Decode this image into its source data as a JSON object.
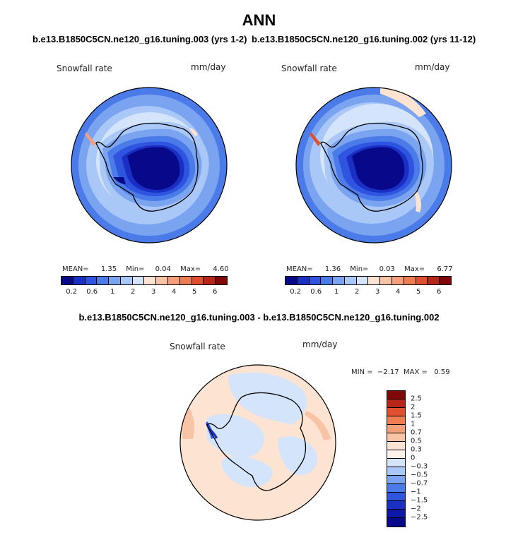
{
  "title": "ANN",
  "panels": [
    {
      "case_title": "b.e13.B1850C5CN.ne120_g16.tuning.003 (yrs 1-2)",
      "variable": "Snowfall rate",
      "units": "mm/day",
      "stats": {
        "mean_label": "MEAN=",
        "mean": "1.35",
        "min_label": "Min=",
        "min": "0.04",
        "max_label": "Max=",
        "max": "4.60"
      }
    },
    {
      "case_title": "b.e13.B1850C5CN.ne120_g16.tuning.002 (yrs 11-12)",
      "variable": "Snowfall rate",
      "units": "mm/day",
      "stats": {
        "mean_label": "MEAN=",
        "mean": "1.36",
        "min_label": "Min=",
        "min": "0.03",
        "max_label": "Max=",
        "max": "6.77"
      }
    }
  ],
  "diff_panel": {
    "title": "b.e13.B1850C5CN.ne120_g16.tuning.003 - b.e13.B1850C5CN.ne120_g16.tuning.002",
    "variable": "Snowfall rate",
    "units": "mm/day",
    "stats_text": "MIN =  −2.17  MAX =   0.59"
  },
  "colorbar_abs": {
    "colors": [
      "#08088a",
      "#1a2fc4",
      "#2f55e0",
      "#4a7be8",
      "#7aa3f0",
      "#a9c7f7",
      "#d4e4fb",
      "#fde3d1",
      "#f9c3a6",
      "#f5a07a",
      "#f07c52",
      "#e0502f",
      "#b8261a",
      "#800808"
    ],
    "ticks": [
      "0.2",
      "0.6",
      "1",
      "2",
      "3",
      "4",
      "5",
      "6"
    ]
  },
  "colorbar_diff": {
    "colors": [
      "#800808",
      "#b8261a",
      "#e0502f",
      "#f07c52",
      "#f5a07a",
      "#f9c3a6",
      "#fde3d1",
      "#fdf2e9",
      "#d4e4fb",
      "#a9c7f7",
      "#7aa3f0",
      "#4a7be8",
      "#2f55e0",
      "#1a2fc4",
      "#0c18a8",
      "#08088a"
    ],
    "ticks": [
      "2.5",
      "2",
      "1.5",
      "1",
      "0.7",
      "0.5",
      "0.3",
      "0",
      "−0.3",
      "−0.5",
      "−0.7",
      "−1",
      "−1.5",
      "−2",
      "−2.5"
    ]
  }
}
